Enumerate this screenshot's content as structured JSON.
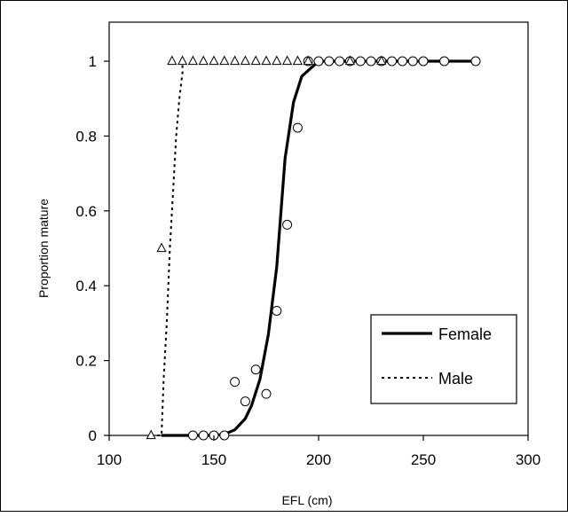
{
  "chart_data": {
    "type": "line",
    "title": "",
    "xlabel": "EFL (cm)",
    "ylabel": "Proportion mature",
    "xlim": [
      100,
      300
    ],
    "ylim": [
      0,
      1
    ],
    "xticks": [
      100,
      150,
      200,
      250,
      300
    ],
    "yticks": [
      0,
      0.2,
      0.4,
      0.6,
      0.8,
      1
    ],
    "ytick_labels": [
      "0",
      "0.2",
      "0.4",
      "0.6",
      "0.8",
      "1"
    ],
    "grid": false,
    "legend_position": "lower-right",
    "series": [
      {
        "name": "Female",
        "line_style": "solid",
        "marker": "circle",
        "color": "#000000",
        "curve": {
          "x": [
            125,
            140,
            150,
            155,
            160,
            165,
            168,
            172,
            176,
            180,
            184,
            188,
            192,
            196,
            200,
            205,
            210,
            230,
            250,
            270,
            275
          ],
          "y": [
            0,
            0,
            0,
            0.003,
            0.015,
            0.045,
            0.08,
            0.15,
            0.27,
            0.45,
            0.74,
            0.89,
            0.96,
            0.98,
            1.0,
            1.0,
            1.0,
            1.0,
            1.0,
            1.0,
            1.0
          ]
        },
        "points": {
          "x": [
            140,
            145,
            150,
            155,
            160,
            165,
            170,
            175,
            180,
            185,
            190,
            195,
            200,
            205,
            210,
            215,
            220,
            225,
            230,
            235,
            240,
            245,
            250,
            260,
            275
          ],
          "y": [
            0,
            0,
            0,
            0,
            0.143,
            0.091,
            0.176,
            0.111,
            0.333,
            0.563,
            0.822,
            1,
            1,
            1,
            1,
            1,
            1,
            1,
            1,
            1,
            1,
            1,
            1,
            1,
            1
          ]
        }
      },
      {
        "name": "Male",
        "line_style": "dotted",
        "marker": "triangle",
        "color": "#000000",
        "curve": {
          "x": [
            120,
            125,
            126,
            127.5,
            129,
            130.5,
            132,
            133.5,
            135,
            135
          ],
          "y": [
            0,
            0,
            0.15,
            0.3,
            0.5,
            0.65,
            0.8,
            0.9,
            0.97,
            1.0
          ]
        },
        "points": {
          "x": [
            120,
            125,
            130,
            135,
            140,
            145,
            150,
            155,
            160,
            165,
            170,
            175,
            180,
            185,
            190,
            195,
            215,
            230
          ],
          "y": [
            0,
            0.5,
            1,
            1,
            1,
            1,
            1,
            1,
            1,
            1,
            1,
            1,
            1,
            1,
            1,
            1,
            1,
            1
          ]
        }
      }
    ]
  }
}
